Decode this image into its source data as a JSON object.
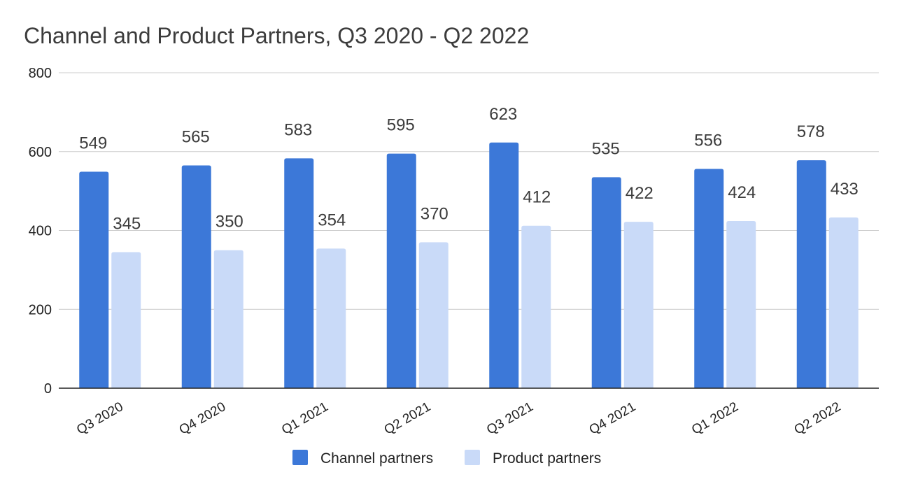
{
  "chart_data": {
    "type": "bar",
    "title": "Channel and Product Partners, Q3 2020 - Q2 2022",
    "xlabel": "",
    "ylabel": "",
    "categories": [
      "Q3 2020",
      "Q4 2020",
      "Q1 2021",
      "Q2 2021",
      "Q3 2021",
      "Q4 2021",
      "Q1 2022",
      "Q2 2022"
    ],
    "series": [
      {
        "name": "Channel partners",
        "color": "#3c78d8",
        "values": [
          549,
          565,
          583,
          595,
          623,
          535,
          556,
          578
        ]
      },
      {
        "name": "Product partners",
        "color": "#c9daf8",
        "values": [
          345,
          350,
          354,
          370,
          412,
          422,
          424,
          433
        ]
      }
    ],
    "ylim": [
      0,
      800
    ],
    "yticks": [
      0,
      200,
      400,
      600,
      800
    ],
    "grid": true,
    "legend_position": "bottom-center"
  }
}
